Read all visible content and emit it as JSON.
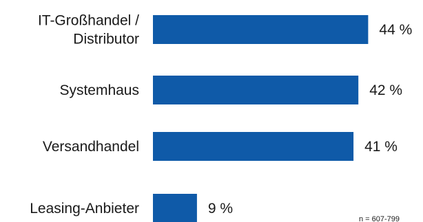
{
  "chart_data": {
    "type": "bar",
    "orientation": "horizontal",
    "categories": [
      [
        "IT-Großhandel /",
        "Distributor"
      ],
      [
        "Systemhaus"
      ],
      [
        "Versandhandel"
      ],
      [
        "Leasing-Anbieter"
      ]
    ],
    "values": [
      44,
      42,
      41,
      9
    ],
    "value_labels": [
      "44 %",
      "42 %",
      "41 %",
      "9 %"
    ],
    "xlim": [
      0,
      50
    ],
    "grid": false,
    "note": "n = 607-799",
    "colors": {
      "bar": "#0f5aa8"
    }
  }
}
